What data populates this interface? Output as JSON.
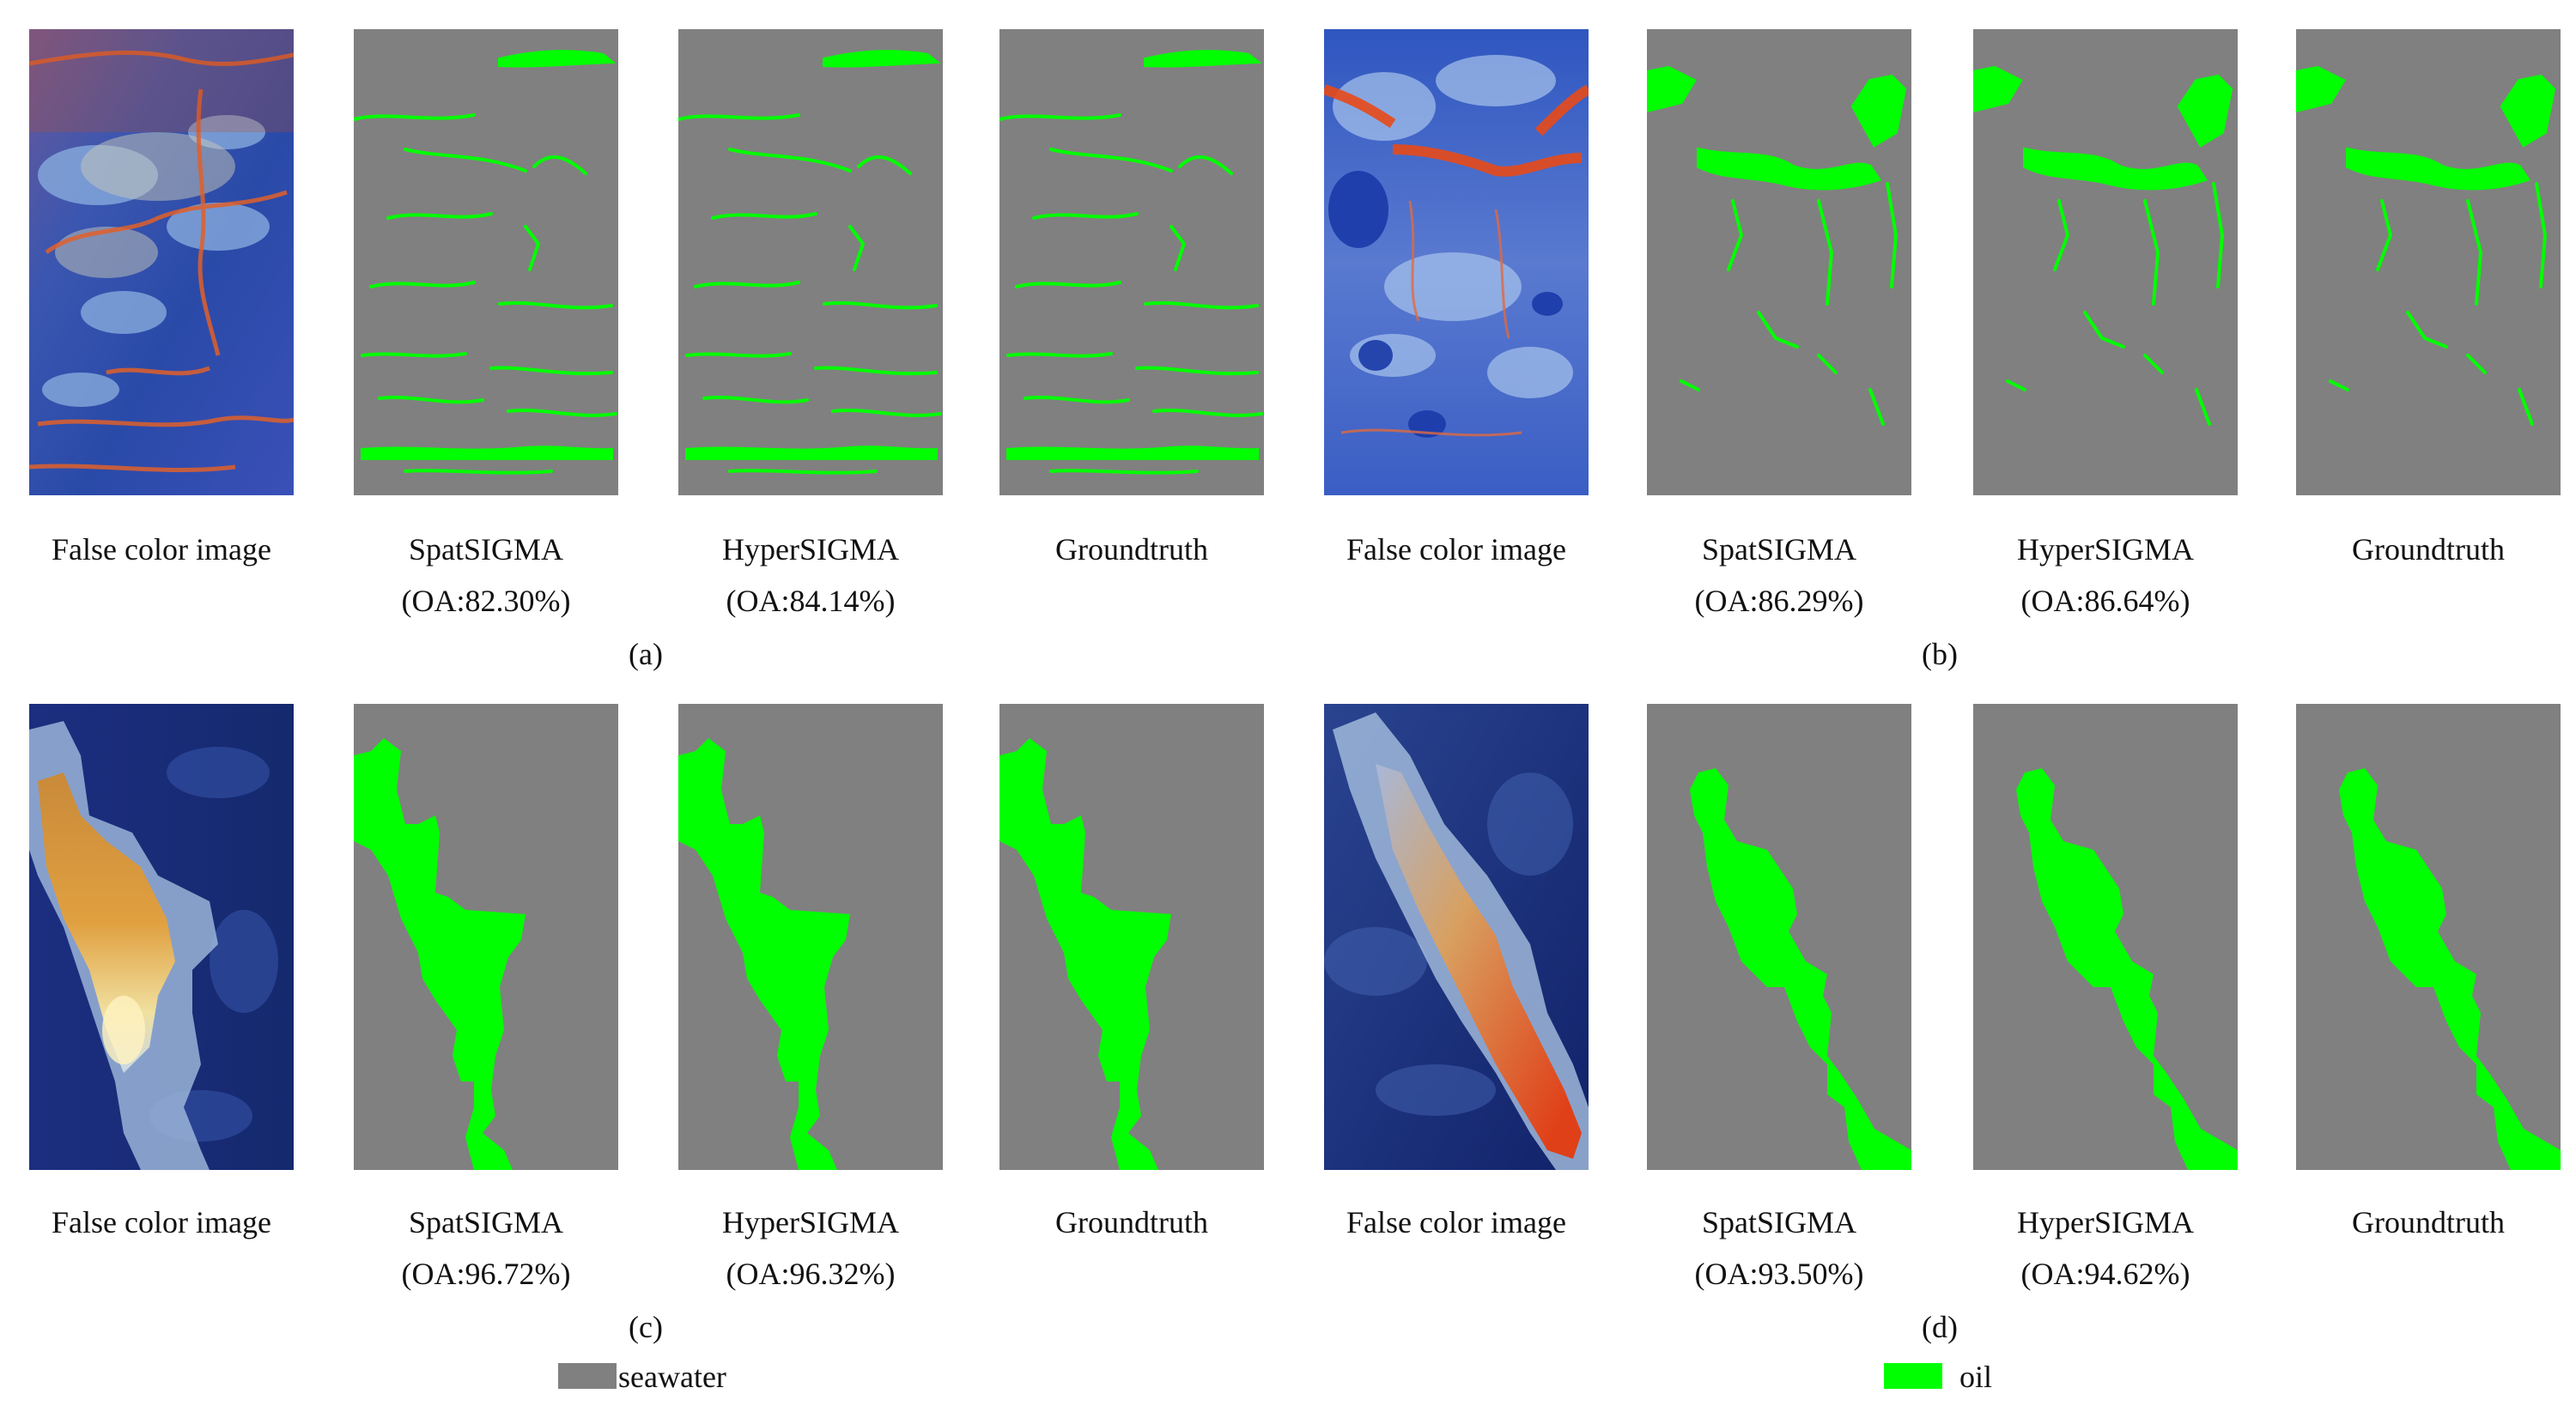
{
  "figure": {
    "colors": {
      "seawater": "#808080",
      "oil": "#00ff00"
    },
    "groups": [
      {
        "label": "(a)",
        "panels": [
          {
            "caption": "False color image",
            "oa": "",
            "kind": "false-color"
          },
          {
            "caption": "SpatSIGMA",
            "oa": "(OA:82.30%)",
            "kind": "mask"
          },
          {
            "caption": "HyperSIGMA",
            "oa": "(OA:84.14%)",
            "kind": "mask"
          },
          {
            "caption": "Groundtruth",
            "oa": "",
            "kind": "mask"
          }
        ]
      },
      {
        "label": "(b)",
        "panels": [
          {
            "caption": "False color image",
            "oa": "",
            "kind": "false-color"
          },
          {
            "caption": "SpatSIGMA",
            "oa": "(OA:86.29%)",
            "kind": "mask"
          },
          {
            "caption": "HyperSIGMA",
            "oa": "(OA:86.64%)",
            "kind": "mask"
          },
          {
            "caption": "Groundtruth",
            "oa": "",
            "kind": "mask"
          }
        ]
      },
      {
        "label": "(c)",
        "panels": [
          {
            "caption": "False color image",
            "oa": "",
            "kind": "false-color"
          },
          {
            "caption": "SpatSIGMA",
            "oa": "(OA:96.72%)",
            "kind": "mask"
          },
          {
            "caption": "HyperSIGMA",
            "oa": "(OA:96.32%)",
            "kind": "mask"
          },
          {
            "caption": "Groundtruth",
            "oa": "",
            "kind": "mask"
          }
        ]
      },
      {
        "label": "(d)",
        "panels": [
          {
            "caption": "False color image",
            "oa": "",
            "kind": "false-color"
          },
          {
            "caption": "SpatSIGMA",
            "oa": "(OA:93.50%)",
            "kind": "mask"
          },
          {
            "caption": "HyperSIGMA",
            "oa": "(OA:94.62%)",
            "kind": "mask"
          },
          {
            "caption": "Groundtruth",
            "oa": "",
            "kind": "mask"
          }
        ]
      }
    ],
    "legend": [
      {
        "label": "seawater",
        "color": "#808080"
      },
      {
        "label": "oil",
        "color": "#00ff00"
      }
    ]
  }
}
